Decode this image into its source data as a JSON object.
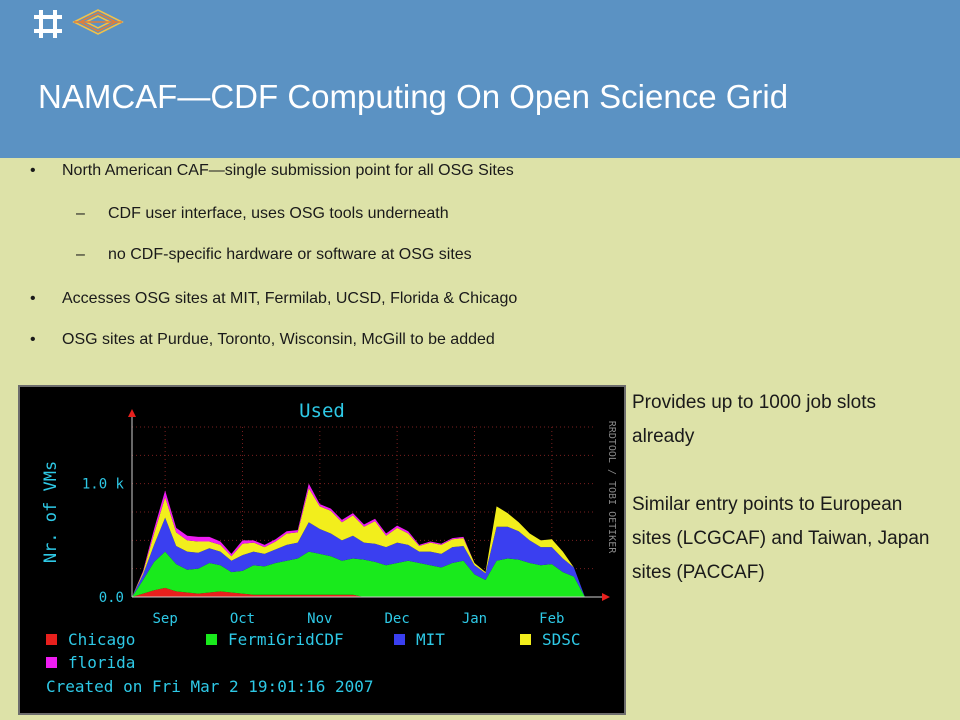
{
  "slide": {
    "title": "NAMCAF—CDF Computing On Open Science Grid",
    "bullets": [
      {
        "level": 1,
        "text": "North American CAF—single submission point for all OSG Sites"
      },
      {
        "level": 2,
        "text": "CDF user interface, uses OSG tools underneath"
      },
      {
        "level": 2,
        "text": "no CDF-specific hardware or software at OSG sites"
      },
      {
        "level": 1,
        "text": "Accesses OSG sites at MIT, Fermilab, UCSD, Florida & Chicago"
      },
      {
        "level": 1,
        "text": "OSG sites at Purdue, Toronto, Wisconsin, McGill to be added"
      }
    ],
    "bullet_marker": "•",
    "dash_marker": "–",
    "side_text": [
      "Provides up to 1000 job slots already",
      "Similar entry points to European sites (LCGCAF) and Taiwan, Japan sites (PACCAF)"
    ],
    "colors": {
      "header": "#5b92c3",
      "background": "#dde2a8"
    }
  },
  "chart_data": {
    "type": "area",
    "stacked": true,
    "title": "Used",
    "ylabel": "Nr. of VMs",
    "side_label": "RRDTOOL / TOBI OETIKER",
    "created": "Created on Fri Mar  2 19:01:16 2007",
    "ylim": [
      0,
      1500
    ],
    "yticks": [
      {
        "value": 0,
        "label": "0.0"
      },
      {
        "value": 1000,
        "label": "1.0 k"
      }
    ],
    "x_range": [
      0,
      42
    ],
    "xticks": [
      "Sep",
      "Oct",
      "Nov",
      "Dec",
      "Jan",
      "Feb"
    ],
    "xtick_positions": [
      3,
      10,
      17,
      24,
      31,
      38
    ],
    "x": [
      0,
      1,
      2,
      3,
      4,
      5,
      6,
      7,
      8,
      9,
      10,
      11,
      12,
      13,
      14,
      15,
      16,
      17,
      18,
      19,
      20,
      21,
      22,
      23,
      24,
      25,
      26,
      27,
      28,
      29,
      30,
      31,
      32,
      33,
      34,
      35,
      36,
      37,
      38,
      39,
      40,
      41,
      42
    ],
    "series": [
      {
        "name": "Chicago",
        "color": "#e8201d",
        "values": [
          0,
          30,
          60,
          80,
          50,
          40,
          30,
          40,
          50,
          40,
          30,
          20,
          20,
          20,
          20,
          20,
          20,
          20,
          20,
          20,
          20,
          0,
          0,
          0,
          0,
          0,
          0,
          0,
          0,
          0,
          0,
          0,
          0,
          0,
          0,
          0,
          0,
          0,
          0,
          0,
          0,
          0,
          0
        ]
      },
      {
        "name": "FermiGridCDF",
        "color": "#19ea1c",
        "values": [
          0,
          120,
          250,
          320,
          240,
          200,
          220,
          260,
          230,
          180,
          200,
          260,
          250,
          280,
          300,
          320,
          380,
          360,
          340,
          300,
          320,
          330,
          310,
          280,
          300,
          320,
          300,
          280,
          260,
          300,
          320,
          200,
          150,
          320,
          340,
          330,
          300,
          280,
          290,
          220,
          180,
          0,
          0
        ]
      },
      {
        "name": "MIT",
        "color": "#3a3ff0",
        "values": [
          0,
          50,
          150,
          300,
          160,
          160,
          140,
          130,
          120,
          100,
          140,
          120,
          110,
          120,
          140,
          140,
          260,
          220,
          200,
          180,
          200,
          150,
          160,
          160,
          180,
          140,
          100,
          120,
          120,
          140,
          130,
          80,
          60,
          300,
          280,
          250,
          200,
          160,
          150,
          120,
          80,
          0,
          0
        ]
      },
      {
        "name": "SDSC",
        "color": "#f2ee1c",
        "values": [
          0,
          20,
          100,
          180,
          120,
          100,
          100,
          60,
          60,
          40,
          100,
          80,
          60,
          70,
          100,
          90,
          300,
          200,
          200,
          160,
          180,
          140,
          200,
          100,
          130,
          100,
          50,
          80,
          80,
          70,
          70,
          20,
          10,
          180,
          120,
          80,
          60,
          60,
          70,
          60,
          0,
          0,
          0
        ]
      },
      {
        "name": "florida",
        "color": "#ef1df2",
        "values": [
          0,
          10,
          40,
          60,
          40,
          40,
          40,
          40,
          30,
          20,
          30,
          20,
          20,
          20,
          20,
          20,
          40,
          20,
          20,
          20,
          20,
          20,
          20,
          20,
          20,
          20,
          10,
          10,
          10,
          10,
          10,
          0,
          0,
          0,
          0,
          0,
          0,
          0,
          0,
          0,
          0,
          0,
          0
        ]
      }
    ]
  }
}
